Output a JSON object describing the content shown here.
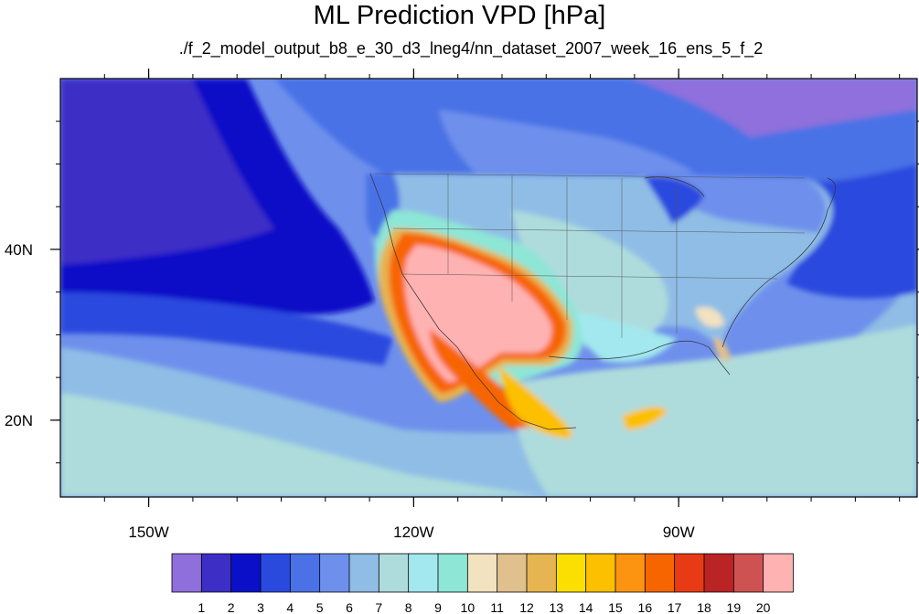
{
  "title": "ML Prediction VPD [hPa]",
  "subtitle": "./f_2_model_output_b8_e_30_d3_lneg4/nn_dataset_2007_week_16_ens_5_f_2",
  "map": {
    "lon_range": [
      -160,
      -63
    ],
    "lat_range": [
      11,
      60
    ],
    "x_tick_labels": [
      {
        "lon": -150,
        "label": "150W"
      },
      {
        "lon": -120,
        "label": "120W"
      },
      {
        "lon": -90,
        "label": "90W"
      }
    ],
    "y_tick_labels": [
      {
        "lat": 40,
        "label": "40N"
      },
      {
        "lat": 20,
        "label": "20N"
      }
    ]
  },
  "colorbar": {
    "colors": [
      "#8f6fdc",
      "#3d2fc6",
      "#0a10c8",
      "#2a4ade",
      "#4a72e6",
      "#6e90ec",
      "#8fbde6",
      "#aedcdc",
      "#a2e8ee",
      "#8ee6d6",
      "#f2e2c0",
      "#e0c08c",
      "#e6b450",
      "#fadf00",
      "#fcc000",
      "#fc9412",
      "#f76500",
      "#e63b14",
      "#bb2424",
      "#cf5252",
      "#ffb2b2"
    ],
    "labels": [
      "1",
      "2",
      "3",
      "4",
      "5",
      "6",
      "7",
      "8",
      "9",
      "10",
      "11",
      "12",
      "13",
      "14",
      "15",
      "16",
      "17",
      "18",
      "19",
      "20"
    ]
  }
}
